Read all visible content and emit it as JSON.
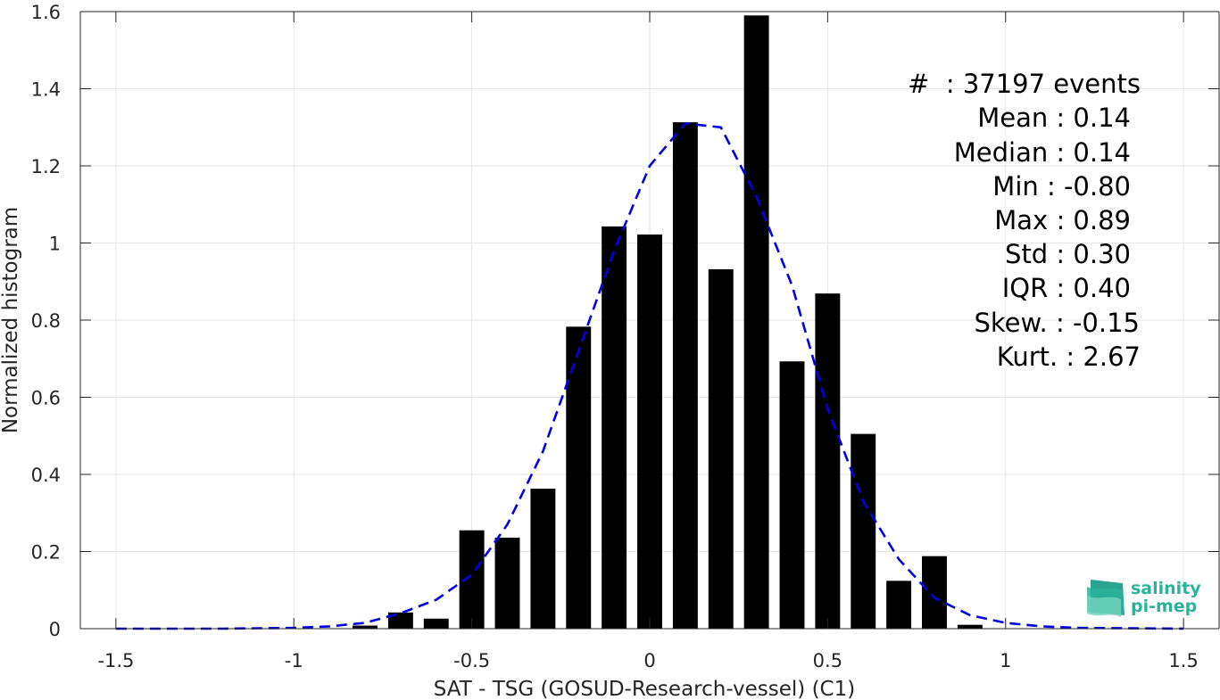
{
  "chart_data": {
    "type": "bar",
    "title": "",
    "xlabel": "SAT - TSG (GOSUD-Research-vessel) (C1)",
    "ylabel": "Normalized histogram",
    "xlim": [
      -1.6,
      1.6
    ],
    "ylim": [
      0,
      1.6
    ],
    "grid": true,
    "x_ticks": [
      -1.5,
      -1,
      -0.5,
      0,
      0.5,
      1,
      1.5
    ],
    "x_tick_labels": [
      "-1.5",
      "-1",
      "-0.5",
      "0",
      "0.5",
      "1",
      "1.5"
    ],
    "y_ticks": [
      0,
      0.2,
      0.4,
      0.6,
      0.8,
      1,
      1.2,
      1.4,
      1.6
    ],
    "y_tick_labels": [
      "0",
      "0.2",
      "0.4",
      "0.6",
      "0.8",
      "1",
      "1.2",
      "1.4",
      "1.6"
    ],
    "bar_width": 0.07,
    "series": [
      {
        "type": "bar",
        "color": "#000000",
        "x": [
          -0.8,
          -0.7,
          -0.6,
          -0.5,
          -0.4,
          -0.3,
          -0.2,
          -0.1,
          0.0,
          0.1,
          0.2,
          0.3,
          0.4,
          0.5,
          0.6,
          0.7,
          0.8,
          0.9
        ],
        "values": [
          0.008,
          0.042,
          0.026,
          0.255,
          0.236,
          0.363,
          0.783,
          1.043,
          1.022,
          1.313,
          0.932,
          1.59,
          0.693,
          0.869,
          0.505,
          0.124,
          0.188,
          0.01
        ]
      },
      {
        "type": "line",
        "style": "dashed",
        "color": "#0000e6",
        "x": [
          -1.5,
          -1.2,
          -1.0,
          -0.9,
          -0.8,
          -0.7,
          -0.6,
          -0.5,
          -0.4,
          -0.3,
          -0.2,
          -0.1,
          0.0,
          0.1,
          0.2,
          0.3,
          0.4,
          0.5,
          0.6,
          0.7,
          0.8,
          0.9,
          1.0,
          1.1,
          1.2,
          1.5
        ],
        "y": [
          0.0,
          0.0,
          0.002,
          0.006,
          0.015,
          0.04,
          0.075,
          0.14,
          0.27,
          0.46,
          0.72,
          0.98,
          1.2,
          1.31,
          1.3,
          1.12,
          0.89,
          0.57,
          0.33,
          0.18,
          0.08,
          0.035,
          0.015,
          0.006,
          0.002,
          0.0
        ]
      }
    ],
    "stats": [
      "#  : 37197 events",
      "Mean : 0.14",
      "Median : 0.14",
      "Min : -0.80",
      "Max : 0.89",
      "Std : 0.30",
      "IQR : 0.40",
      "Skew. : -0.15",
      "Kurt. : 2.67"
    ]
  },
  "logo": {
    "line1": "salinity",
    "line2": "pi-mep",
    "color": "#2bb39a"
  }
}
